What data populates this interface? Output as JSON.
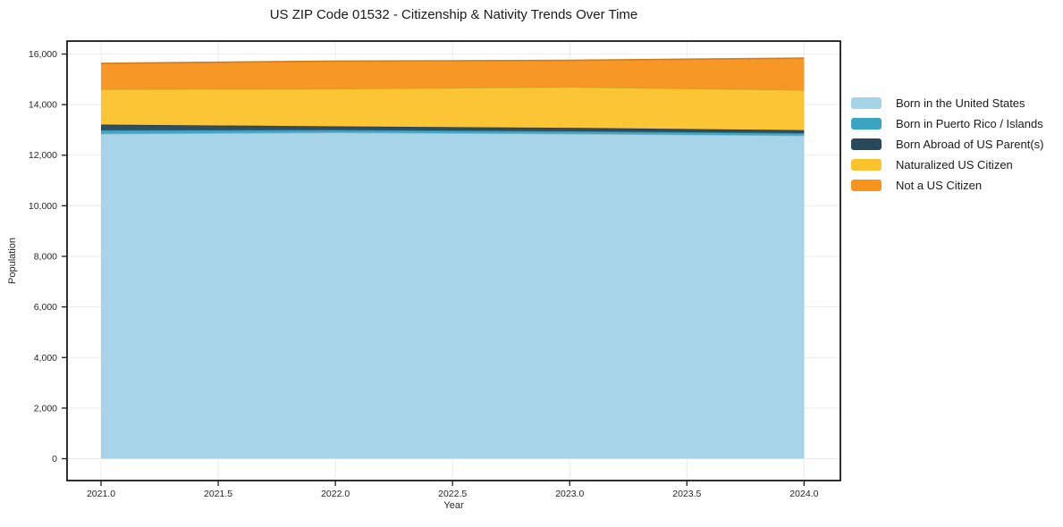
{
  "chart_data": {
    "type": "area",
    "stacked": true,
    "title": "US ZIP Code 01532 - Citizenship & Nativity Trends Over Time",
    "xlabel": "Year",
    "ylabel": "Population",
    "x": [
      2021,
      2022,
      2023,
      2024
    ],
    "series": [
      {
        "name": "Born in the United States",
        "color": "#a5d3e8",
        "values": [
          12850,
          12900,
          12850,
          12780
        ]
      },
      {
        "name": "Born in Puerto Rico / Islands",
        "color": "#3aa5c2",
        "values": [
          140,
          100,
          100,
          95
        ]
      },
      {
        "name": "Born Abroad of US Parent(s)",
        "color": "#29485c",
        "values": [
          220,
          140,
          130,
          115
        ]
      },
      {
        "name": "Naturalized US Citizen",
        "color": "#fcc32e",
        "values": [
          1400,
          1490,
          1620,
          1590
        ]
      },
      {
        "name": "Not a US Citizen",
        "color": "#f7941e",
        "values": [
          1020,
          1090,
          1050,
          1260
        ]
      }
    ],
    "xticks": {
      "values": [
        2021.0,
        2021.5,
        2022.0,
        2022.5,
        2023.0,
        2023.5,
        2024.0
      ],
      "labels": [
        "2021.0",
        "2021.5",
        "2022.0",
        "2022.5",
        "2023.0",
        "2023.5",
        "2024.0"
      ]
    },
    "yticks": {
      "values": [
        0,
        2000,
        4000,
        6000,
        8000,
        10000,
        12000,
        14000,
        16000
      ],
      "labels": [
        "0",
        "2,000",
        "4,000",
        "6,000",
        "8,000",
        "10,000",
        "12,000",
        "14,000",
        "16,000"
      ]
    },
    "xlim": [
      2020.855,
      2024.155
    ],
    "ylim": [
      -865,
      16512
    ],
    "grid": true,
    "legend_position": "right",
    "grid_color": "#ececec",
    "border_color": "#1a1a1a",
    "tick_label_color": "#262626"
  }
}
